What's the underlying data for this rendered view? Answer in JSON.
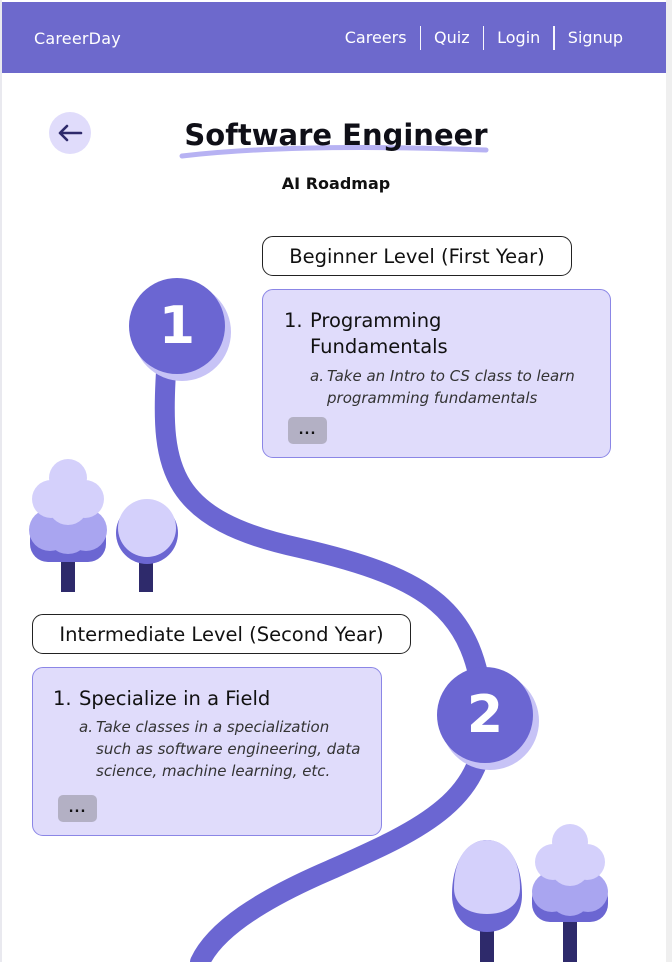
{
  "nav": {
    "brand": "CareerDay",
    "links": [
      "Careers",
      "Quiz",
      "Login",
      "Signup"
    ]
  },
  "header": {
    "title": "Software Engineer",
    "subtitle": "AI Roadmap"
  },
  "levels": [
    {
      "step": "1",
      "label": "Beginner Level (First Year)",
      "item_number": "1.",
      "item_title_line1": "Programming",
      "item_title_line2": "Fundamentals",
      "sub_marker": "a.",
      "sub_line1": "Take an Intro to CS class to learn",
      "sub_line2": "programming fundamentals",
      "more_label": "..."
    },
    {
      "step": "2",
      "label": "Intermediate Level (Second Year)",
      "item_number": "1.",
      "item_title_line1": "Specialize in a Field",
      "sub_marker": "a.",
      "sub_line1": "Take classes in a specialization",
      "sub_line2": "such as software engineering, data",
      "sub_line3": "science, machine learning, etc.",
      "more_label": "..."
    }
  ],
  "colors": {
    "primary": "#6d69cc",
    "card_bg": "#e0dcfb",
    "tree_light": "#d4d0fb",
    "tree_mid": "#a9a5f0",
    "tree_dark": "#6b66d2",
    "trunk": "#2e2a6b"
  },
  "icons": {
    "back": "arrow-left-icon"
  }
}
